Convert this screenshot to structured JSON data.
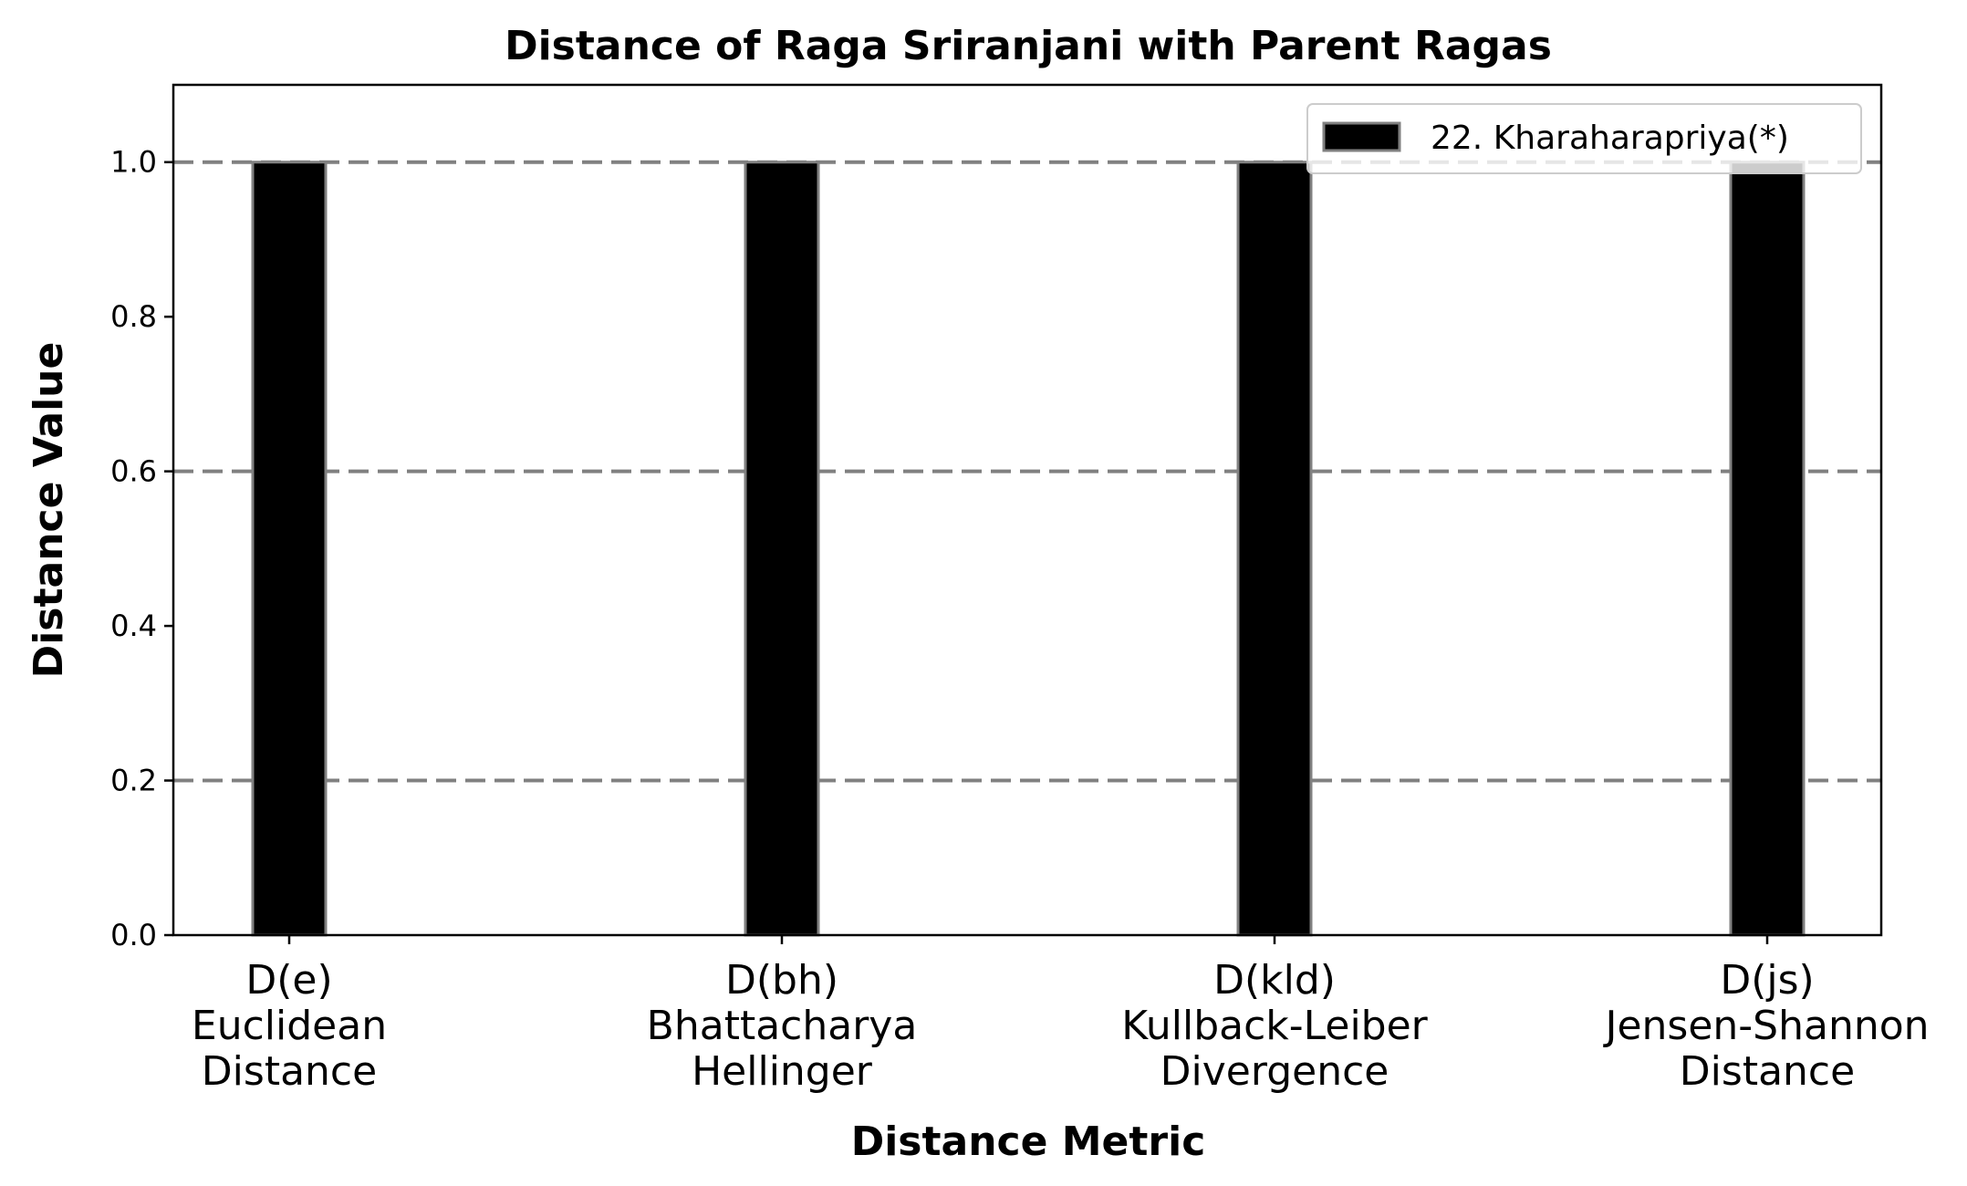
{
  "chart_data": {
    "type": "bar",
    "title": "Distance of Raga Sriranjani with Parent Ragas",
    "xlabel": "Distance Metric",
    "ylabel": "Distance Value",
    "categories": [
      [
        "D(e)",
        "Euclidean",
        "Distance"
      ],
      [
        "D(bh)",
        "Bhattacharya",
        "Hellinger"
      ],
      [
        "D(kld)",
        "Kullback-Leiber",
        "Divergence"
      ],
      [
        "D(js)",
        "Jensen-Shannon",
        "Distance"
      ]
    ],
    "series": [
      {
        "name": "22. Kharaharapriya(*)",
        "values": [
          1.0,
          1.0,
          1.0,
          1.0
        ],
        "color": "#000000",
        "edge_color": "#808080"
      }
    ],
    "ylim": [
      0,
      1.1
    ],
    "yticks": [
      "0.0",
      "0.2",
      "0.4",
      "0.6",
      "0.8",
      "1.0"
    ],
    "grid": {
      "axis": "y",
      "style": "dashed",
      "values": [
        0.2,
        0.6,
        1.0
      ],
      "color": "#808080"
    },
    "legend_position": "top-right"
  }
}
